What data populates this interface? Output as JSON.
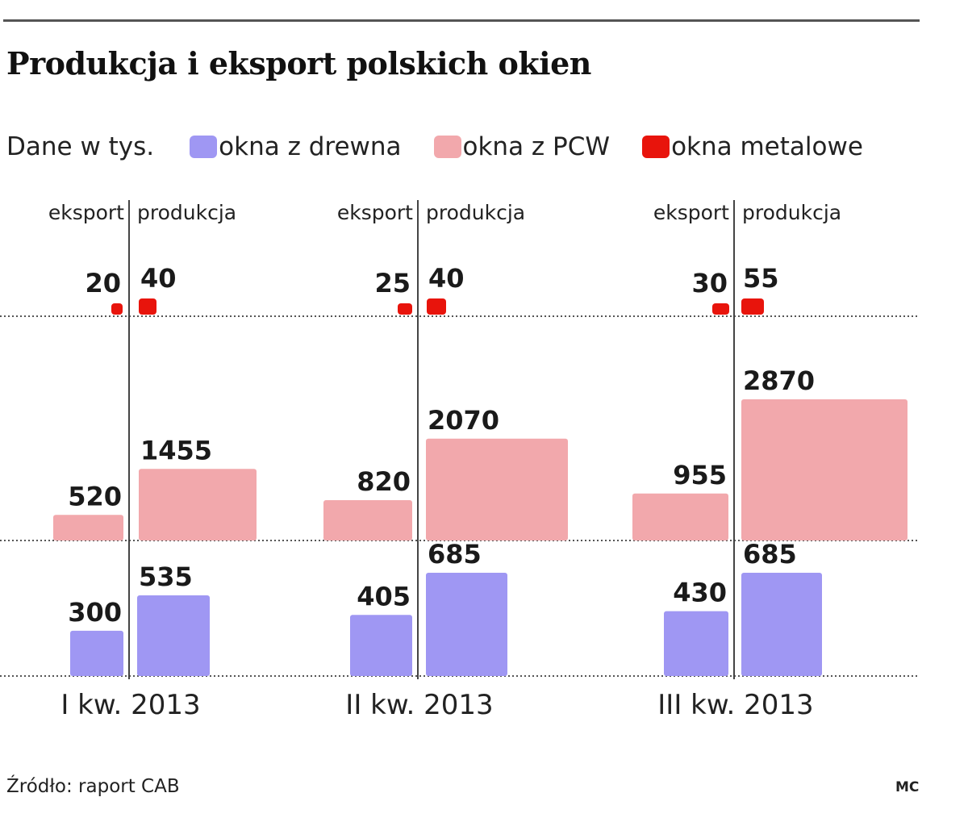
{
  "title": "Produkcja i eksport polskich okien",
  "legend": {
    "unit": "Dane w tys.",
    "items": [
      {
        "label": "okna z drewna",
        "color": "#9f97f3"
      },
      {
        "label": "okna z PCW",
        "color": "#f2a8ac"
      },
      {
        "label": "okna metalowe",
        "color": "#e8140c"
      }
    ]
  },
  "column_headers": {
    "export": "eksport",
    "production": "produkcja"
  },
  "chart_data": {
    "type": "bar",
    "categories": [
      "I kw. 2013",
      "II kw. 2013",
      "III kw. 2013"
    ],
    "unit": "tys.",
    "groups": [
      "eksport",
      "produkcja"
    ],
    "series": [
      {
        "name": "okna z drewna",
        "color": "#9f97f3",
        "eksport": [
          300,
          405,
          430
        ],
        "produkcja": [
          535,
          685,
          685
        ]
      },
      {
        "name": "okna z PCW",
        "color": "#f2a8ac",
        "eksport": [
          520,
          820,
          955
        ],
        "produkcja": [
          1455,
          2070,
          2870
        ]
      },
      {
        "name": "okna metalowe",
        "color": "#e8140c",
        "eksport": [
          20,
          25,
          30
        ],
        "produkcja": [
          40,
          40,
          55
        ]
      }
    ]
  },
  "source": "Źródło: raport CAB",
  "credit": "MC"
}
